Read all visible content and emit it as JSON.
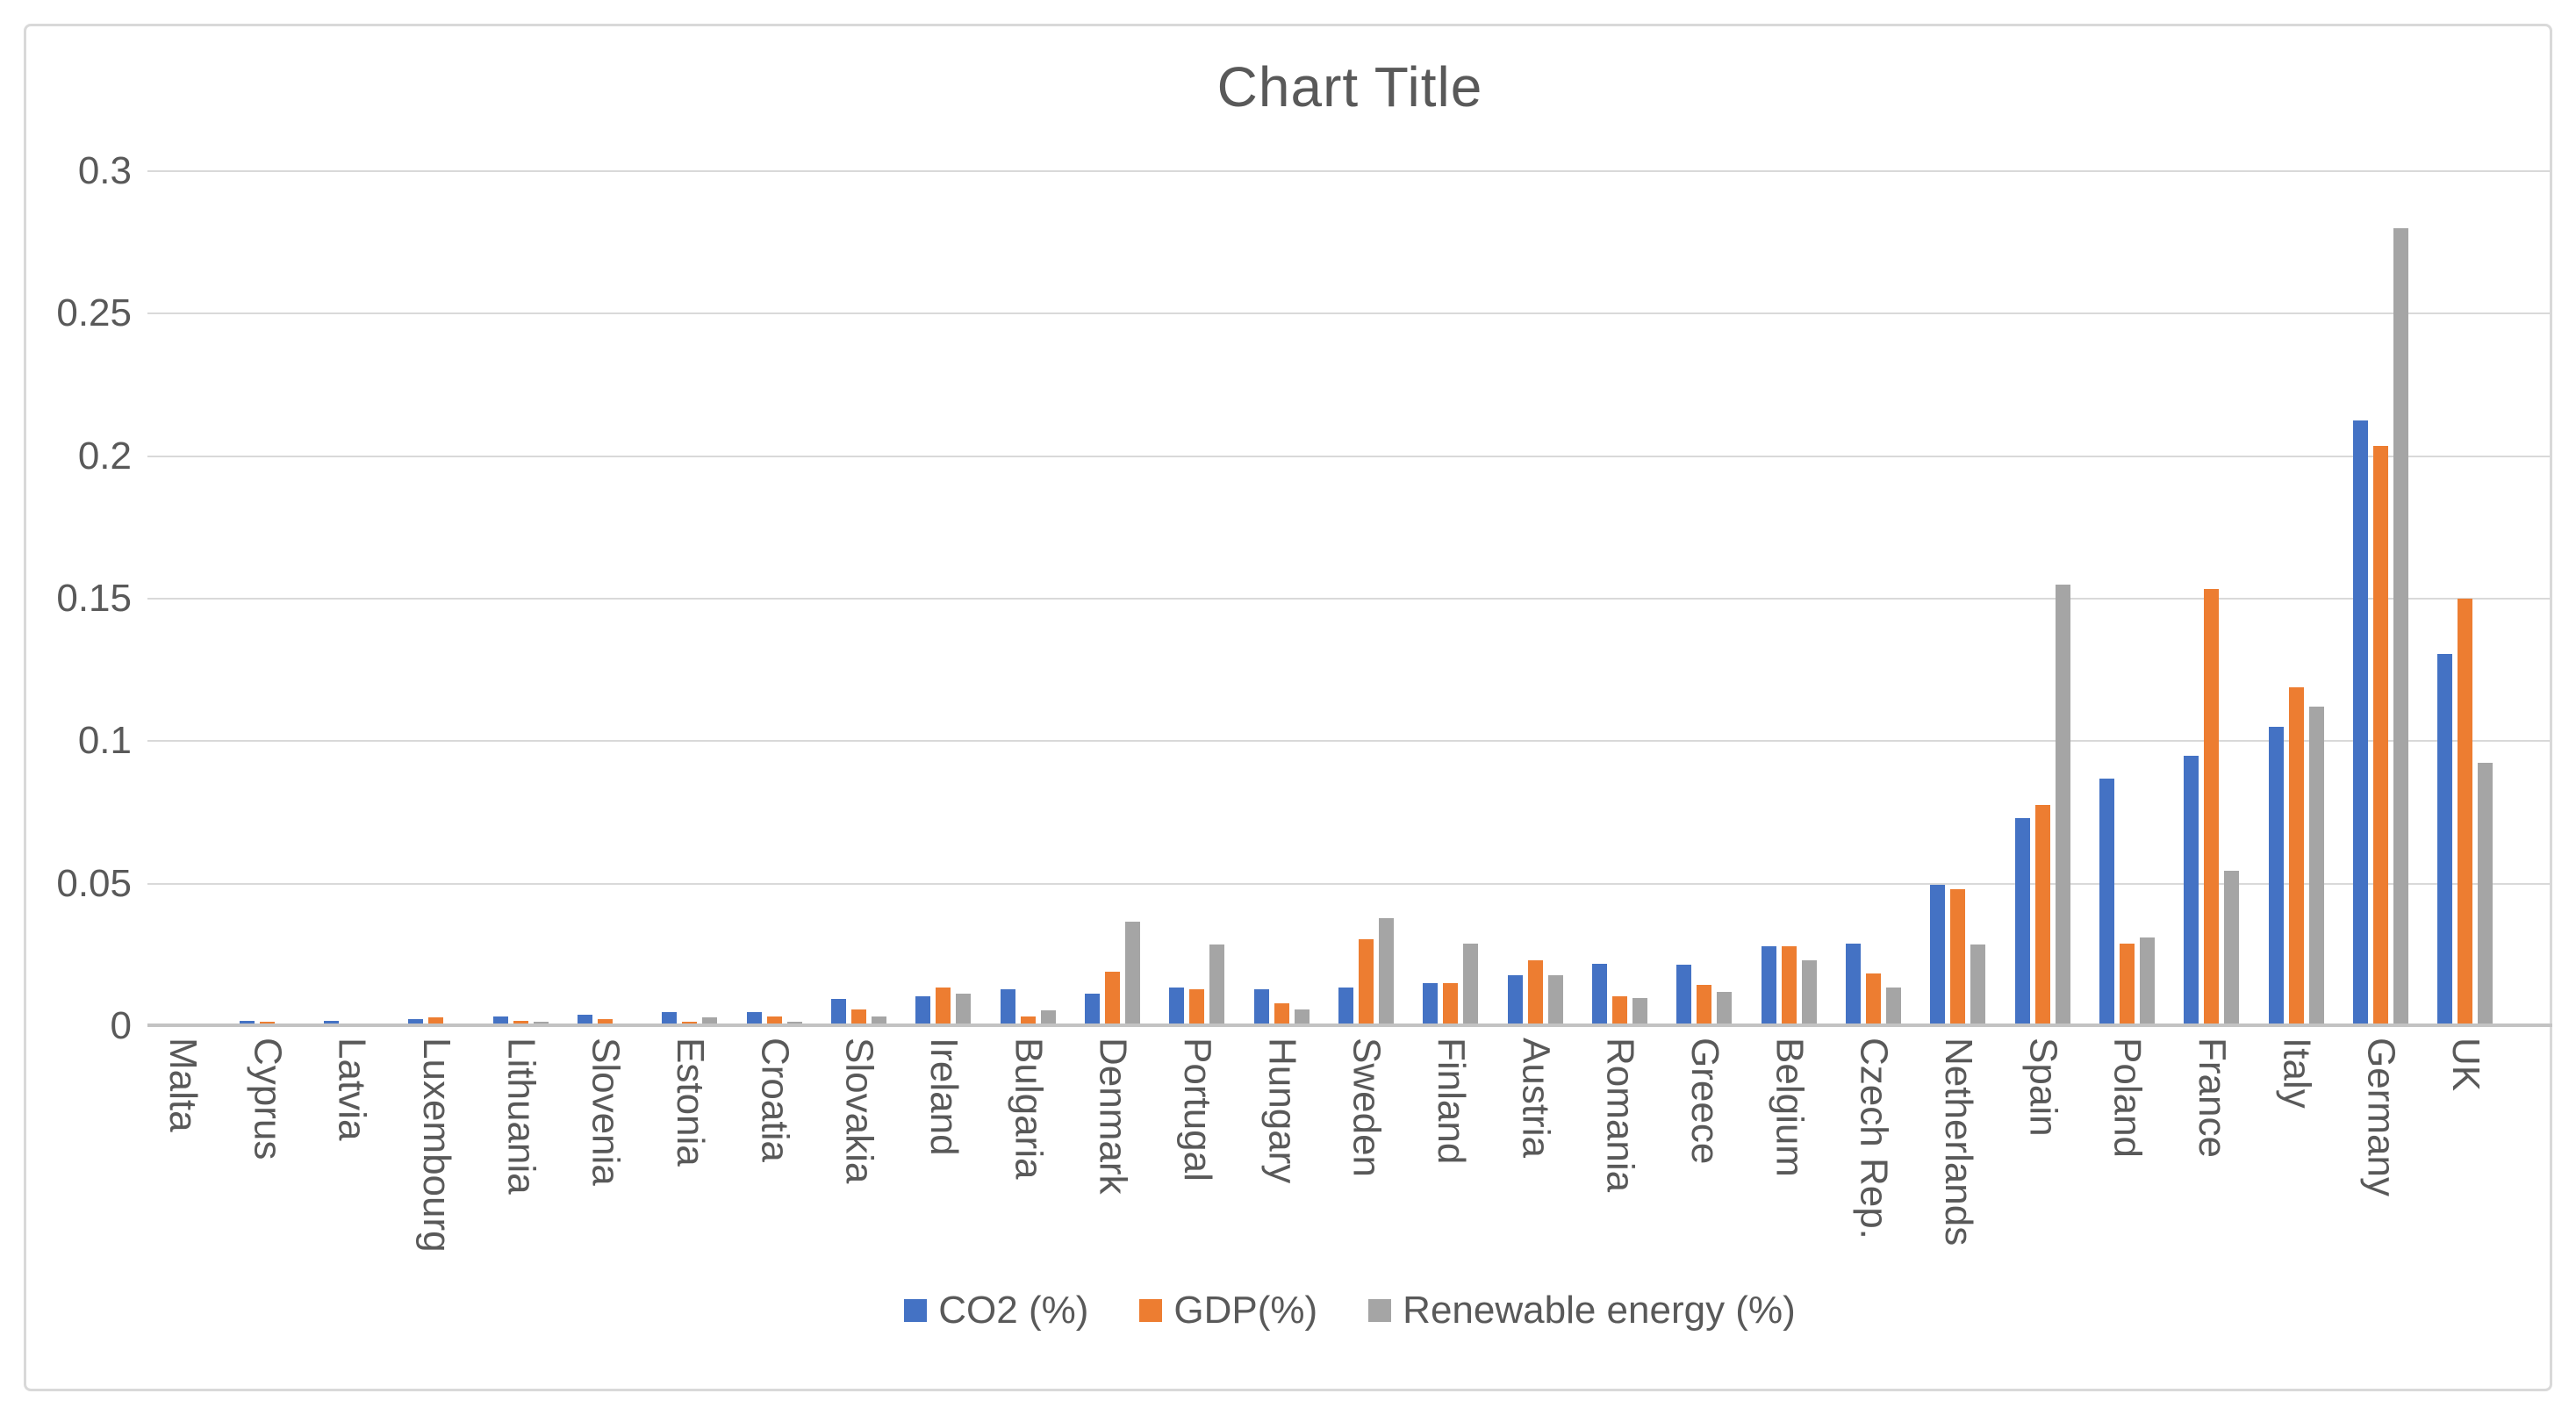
{
  "chart_data": {
    "type": "bar",
    "title": "Chart Title",
    "categories": [
      "Malta",
      "Cyprus",
      "Latvia",
      "Luxembourg",
      "Lithuania",
      "Slovenia",
      "Estonia",
      "Croatia",
      "Slovakia",
      "Ireland",
      "Bulgaria",
      "Denmark",
      "Portugal",
      "Hungary",
      "Sweden",
      "Finland",
      "Austria",
      "Romania",
      "Greece",
      "Belgium",
      "Czech Rep.",
      "Netherlands",
      "Spain",
      "Poland",
      "France",
      "Italy",
      "Germany",
      "UK"
    ],
    "series": [
      {
        "name": "CO2 (%)",
        "color": "#4472C4",
        "values": [
          0.0005,
          0.002,
          0.002,
          0.0025,
          0.0035,
          0.004,
          0.005,
          0.005,
          0.0095,
          0.0105,
          0.013,
          0.0115,
          0.0135,
          0.013,
          0.0135,
          0.015,
          0.018,
          0.022,
          0.0215,
          0.028,
          0.029,
          0.0495,
          0.073,
          0.087,
          0.095,
          0.105,
          0.2125,
          0.1305
        ]
      },
      {
        "name": "GDP(%)",
        "color": "#ED7D31",
        "values": [
          0.0005,
          0.0015,
          0.001,
          0.003,
          0.002,
          0.0025,
          0.0015,
          0.0035,
          0.006,
          0.0135,
          0.0035,
          0.019,
          0.013,
          0.008,
          0.0305,
          0.015,
          0.023,
          0.0105,
          0.0145,
          0.028,
          0.0185,
          0.048,
          0.0775,
          0.029,
          0.1535,
          0.119,
          0.2035,
          0.15
        ]
      },
      {
        "name": "Renewable energy (%)",
        "color": "#A5A5A5",
        "values": [
          0.0002,
          0.0005,
          0.0005,
          0.0004,
          0.0015,
          0.0006,
          0.003,
          0.0015,
          0.0035,
          0.0115,
          0.0055,
          0.0365,
          0.0285,
          0.006,
          0.038,
          0.029,
          0.018,
          0.01,
          0.012,
          0.023,
          0.0135,
          0.0285,
          0.155,
          0.031,
          0.0545,
          0.112,
          0.28,
          0.0925
        ]
      }
    ],
    "ylim": [
      0,
      0.3
    ],
    "y_ticks": [
      {
        "value": 0,
        "label": "0"
      },
      {
        "value": 0.05,
        "label": "0.05"
      },
      {
        "value": 0.1,
        "label": "0.1"
      },
      {
        "value": 0.15,
        "label": "0.15"
      },
      {
        "value": 0.2,
        "label": "0.2"
      },
      {
        "value": 0.25,
        "label": "0.25"
      },
      {
        "value": 0.3,
        "label": "0.3"
      }
    ],
    "xlabel": "",
    "ylabel": "",
    "grid": true,
    "legend_position": "bottom",
    "colors": {
      "gridline": "#D9D9D9",
      "axis_line": "#C3C3C3",
      "text": "#595959",
      "border": "#D9D9D9",
      "background": "#FFFFFF"
    }
  }
}
